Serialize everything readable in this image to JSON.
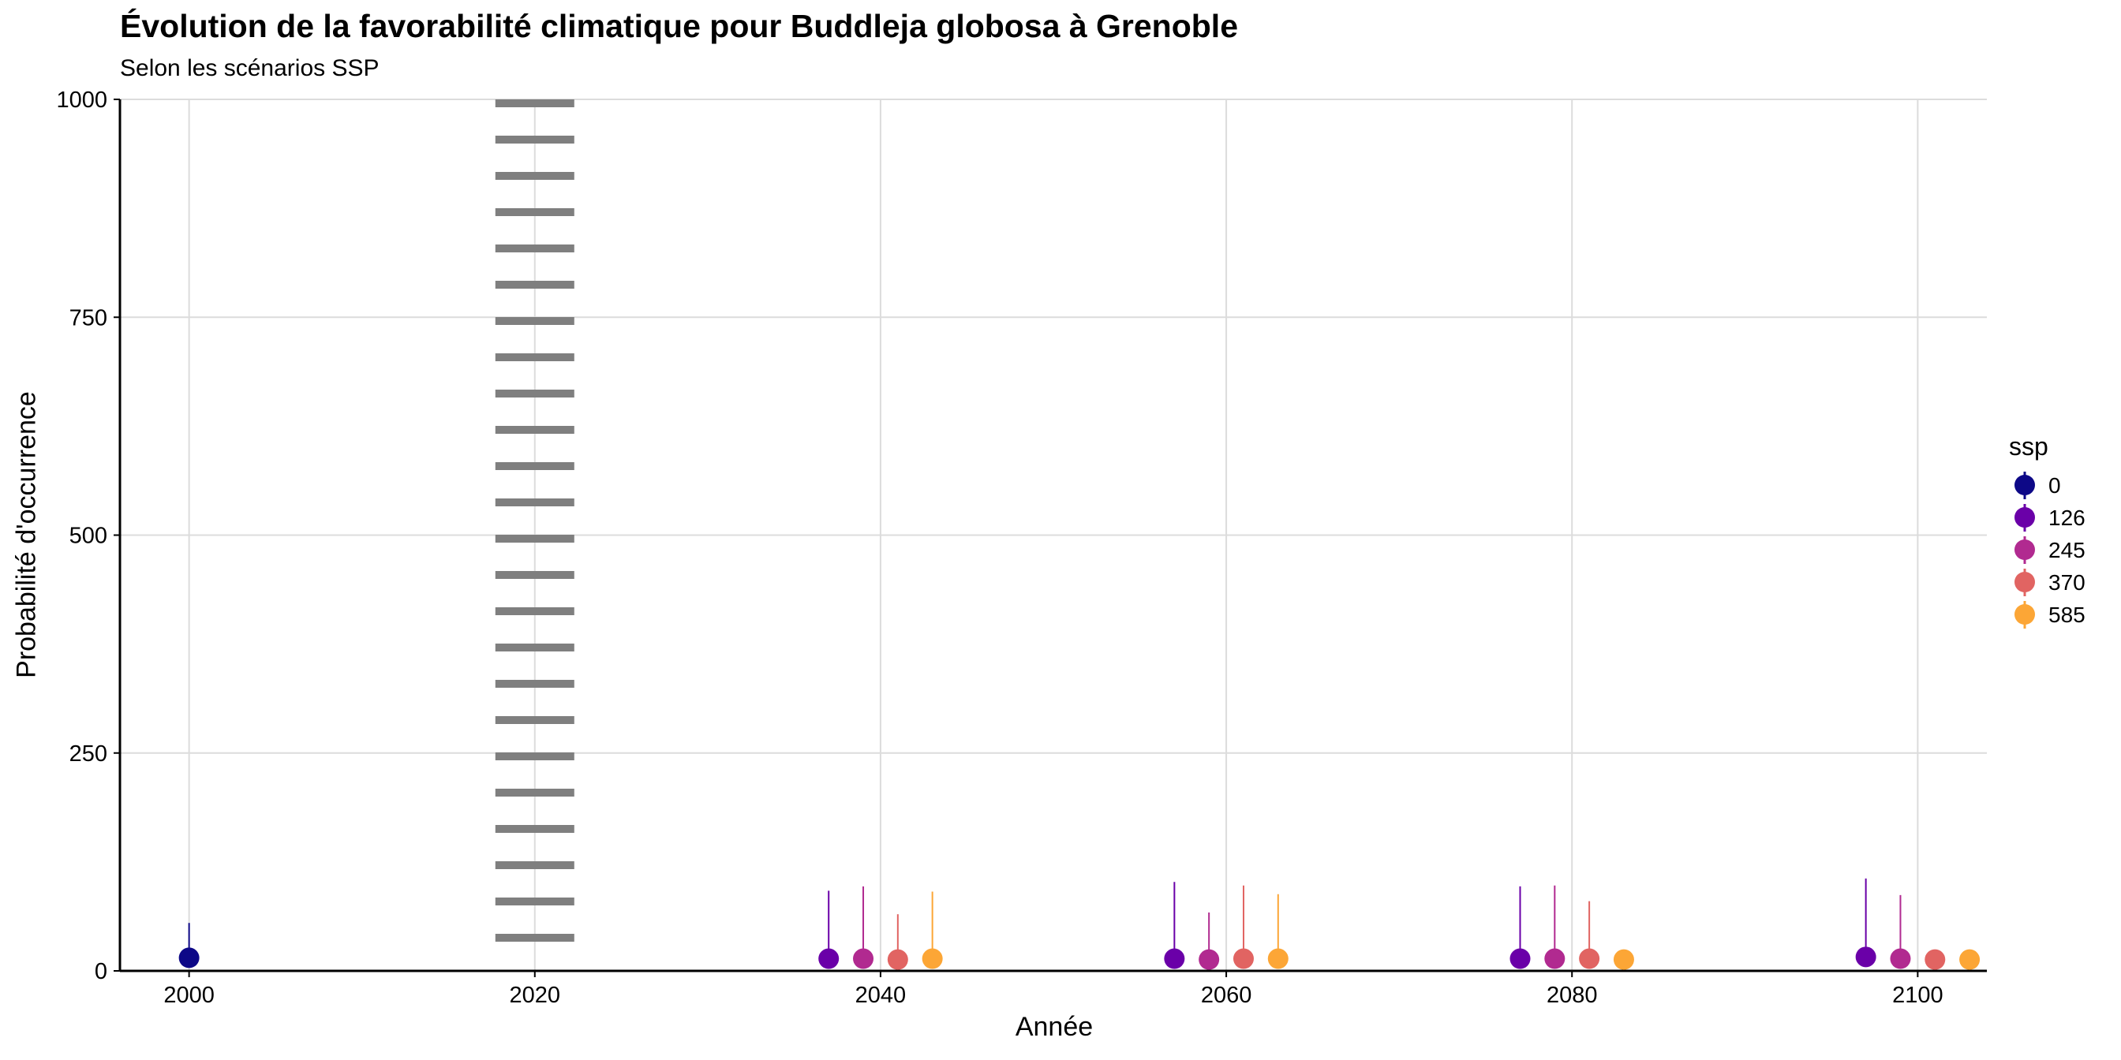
{
  "chart_data": {
    "type": "scatter",
    "title": "Évolution de la favorabilité climatique pour Buddleja globosa à Grenoble",
    "subtitle": "Selon les scénarios SSP",
    "xlabel": "Année",
    "ylabel": "Probabilité d'occurrence",
    "xlim": [
      1996,
      2104
    ],
    "ylim": [
      0,
      1000
    ],
    "x_ticks": [
      "2000",
      "2020",
      "2040",
      "2060",
      "2080",
      "2100"
    ],
    "y_ticks": [
      "0",
      "250",
      "500",
      "750",
      "1000"
    ],
    "grid": true,
    "legend_title": "ssp",
    "legend_placement": "right",
    "reference_line": {
      "x": 2020,
      "style": "dotted"
    },
    "series": [
      {
        "name": "0",
        "color": "#0d0887",
        "points": [
          {
            "x": 2000,
            "y": 15,
            "ymax": 55
          }
        ]
      },
      {
        "name": "126",
        "color": "#6a00a8",
        "points": [
          {
            "x": 2037,
            "y": 14,
            "ymax": 92
          },
          {
            "x": 2057,
            "y": 14,
            "ymax": 102
          },
          {
            "x": 2077,
            "y": 14,
            "ymax": 97
          },
          {
            "x": 2097,
            "y": 16,
            "ymax": 106
          }
        ]
      },
      {
        "name": "245",
        "color": "#b12a90",
        "points": [
          {
            "x": 2039,
            "y": 14,
            "ymax": 97
          },
          {
            "x": 2059,
            "y": 13,
            "ymax": 67
          },
          {
            "x": 2079,
            "y": 14,
            "ymax": 98
          },
          {
            "x": 2099,
            "y": 14,
            "ymax": 87
          }
        ]
      },
      {
        "name": "370",
        "color": "#e16462",
        "points": [
          {
            "x": 2041,
            "y": 13,
            "ymax": 65
          },
          {
            "x": 2061,
            "y": 14,
            "ymax": 98
          },
          {
            "x": 2081,
            "y": 14,
            "ymax": 80
          },
          {
            "x": 2101,
            "y": 13,
            "ymax": 13
          }
        ]
      },
      {
        "name": "585",
        "color": "#fca636",
        "points": [
          {
            "x": 2043,
            "y": 14,
            "ymax": 91
          },
          {
            "x": 2063,
            "y": 14,
            "ymax": 88
          },
          {
            "x": 2083,
            "y": 13,
            "ymax": 13
          },
          {
            "x": 2103,
            "y": 13,
            "ymax": 13
          }
        ]
      }
    ]
  }
}
